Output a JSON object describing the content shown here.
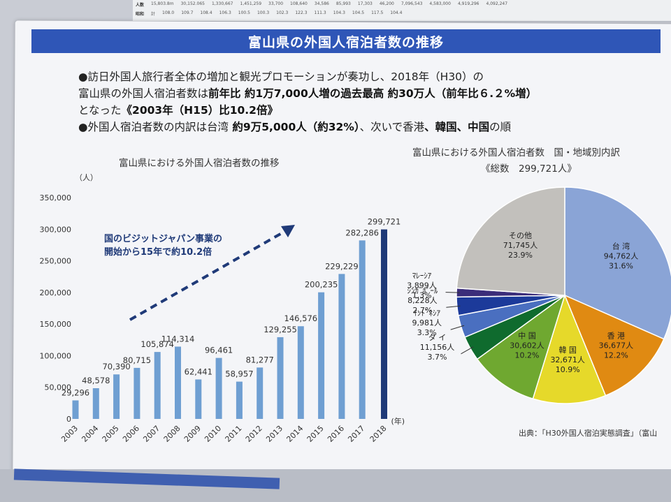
{
  "header": {
    "banner_title": "富山県の外国人宿泊者数の推移"
  },
  "background_strip": {
    "row1": [
      "人数",
      "15,803.8m",
      "30,152.065",
      "1,330,667",
      "1,451,259",
      "33,700",
      "108,640",
      "34,586",
      "85,993",
      "17,303",
      "46,200",
      "7,096,543",
      "4,583,000",
      "4,919,296",
      "4,092,247"
    ],
    "row2": [
      "昭和",
      "計",
      "108.0",
      "109.7",
      "108.4",
      "106.3",
      "100.5",
      "100.3",
      "102.3",
      "122.3",
      "111.3",
      "104.3",
      "104.5",
      "117.5",
      "104.4"
    ]
  },
  "bullets": {
    "line1": "●訪日外国人旅行者全体の増加と観光プロモーションが奏功し、2018年（H30）の",
    "line2_plain": "富山県の外国人宿泊者数は",
    "line2_bold": "前年比 約1万7,000人増の過去最高 約30万人（前年比６.２%増）",
    "line3_plain": "となった",
    "line3_bold": "《2003年（H15）比10.2倍》",
    "line4_plain1": "●外国人宿泊者数の内訳は台湾",
    "line4_bold1": " 約9万5,000人（約32%）",
    "line4_plain2": "、次いで香港",
    "line4_bold2": "、韓国、中国",
    "line4_plain3": "の順"
  },
  "left_chart": {
    "title": "富山県における外国人宿泊者数の推移",
    "unit": "（人）",
    "year_suffix": "(年)",
    "annotation_line1": "国のビジットジャパン事業の",
    "annotation_line2": "開始から15年で約10.2倍"
  },
  "right_chart": {
    "title": "富山県における外国人宿泊者数　国・地域別内訳",
    "subtitle": "《総数　299,721人》"
  },
  "source": "出典：「H30外国人宿泊実態調査」（富山",
  "colors": {
    "banner": "#2f56b7",
    "bar": "#6f9fd2",
    "bar_last": "#1f3a78",
    "arrow": "#1f3a78"
  },
  "chart_data": [
    {
      "type": "bar",
      "title": "富山県における外国人宿泊者数の推移",
      "ylabel": "（人）",
      "xlabel": "(年)",
      "ylim": [
        0,
        350000
      ],
      "yticks": [
        0,
        50000,
        100000,
        150000,
        200000,
        250000,
        300000,
        350000
      ],
      "ytick_labels": [
        "0",
        "50,000",
        "100,000",
        "150,000",
        "200,000",
        "250,000",
        "300,000",
        "350,000"
      ],
      "categories": [
        "2003",
        "2004",
        "2005",
        "2006",
        "2007",
        "2008",
        "2009",
        "2010",
        "2011",
        "2012",
        "2013",
        "2014",
        "2015",
        "2016",
        "2017",
        "2018"
      ],
      "values": [
        29296,
        48578,
        70390,
        80715,
        105874,
        114314,
        62441,
        96461,
        58957,
        81277,
        129255,
        146576,
        200235,
        229229,
        282286,
        299721
      ],
      "value_labels": [
        "29,296",
        "48,578",
        "70,390",
        "80,715",
        "105,874",
        "114,314",
        "62,441",
        "96,461",
        "58,957",
        "81,277",
        "129,255",
        "146,576",
        "200,235",
        "229,229",
        "282,286",
        "299,721"
      ],
      "grid": false
    },
    {
      "type": "pie",
      "title": "富山県における外国人宿泊者数　国・地域別内訳",
      "subtitle": "《総数　299,721人》",
      "slices": [
        {
          "name": "台湾",
          "label": "台 湾",
          "value": 94762,
          "value_label": "94,762人",
          "percent": "31.6%",
          "color": "#8aa4d6"
        },
        {
          "name": "香港",
          "label": "香 港",
          "value": 36677,
          "value_label": "36,677人",
          "percent": "12.2%",
          "color": "#e08a12"
        },
        {
          "name": "韓国",
          "label": "韓 国",
          "value": 32671,
          "value_label": "32,671人",
          "percent": "10.9%",
          "color": "#e6d92a"
        },
        {
          "name": "中国",
          "label": "中 国",
          "value": 30602,
          "value_label": "30,602人",
          "percent": "10.2%",
          "color": "#6fa830"
        },
        {
          "name": "タイ",
          "label": "タ イ",
          "value": 11156,
          "value_label": "11,156人",
          "percent": "3.7%",
          "color": "#0f6b2e"
        },
        {
          "name": "インドネシア",
          "label": "ｲﾝﾄﾞﾈｼｱ",
          "value": 9981,
          "value_label": "9,981人",
          "percent": "3.3%",
          "color": "#4a6fc0"
        },
        {
          "name": "シンガポール",
          "label": "ｼﾝｶﾞﾎﾟｰﾙ",
          "value": 8228,
          "value_label": "8,228人",
          "percent": "2.7%",
          "color": "#1c3a9a"
        },
        {
          "name": "マレーシア",
          "label": "ﾏﾚｰｼｱ",
          "value": 3899,
          "value_label": "3,899人",
          "percent": "1.3%",
          "color": "#3b2d7a"
        },
        {
          "name": "その他",
          "label": "その他",
          "value": 71745,
          "value_label": "71,745人",
          "percent": "23.9%",
          "color": "#c2c0bc"
        }
      ]
    }
  ]
}
